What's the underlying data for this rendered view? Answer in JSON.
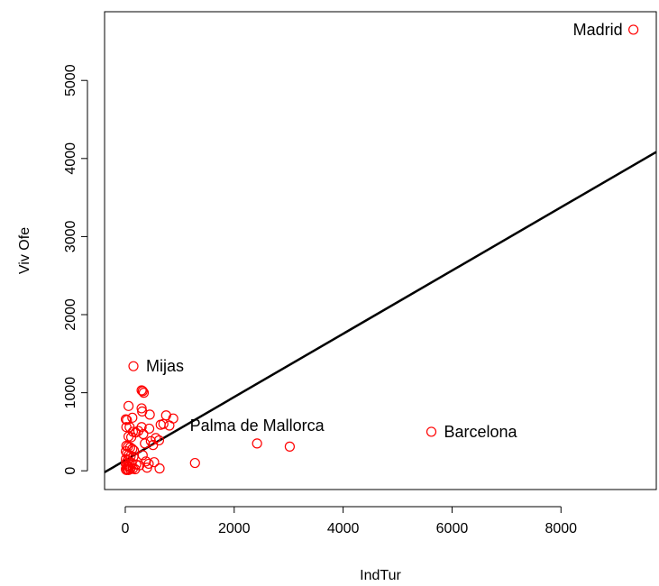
{
  "chart_data": {
    "type": "scatter",
    "title": "",
    "xlabel": "IndTur",
    "ylabel": "Viv Ofe",
    "xlim": [
      -380,
      9750
    ],
    "ylim": [
      -240,
      5880
    ],
    "x_ticks": [
      0,
      2000,
      4000,
      6000,
      8000
    ],
    "x_tick_labels": [
      "0",
      "2000",
      "4000",
      "6000",
      "8000"
    ],
    "y_ticks": [
      0,
      1000,
      2000,
      3000,
      4000,
      5000
    ],
    "y_tick_labels": [
      "0",
      "1000",
      "2000",
      "3000",
      "4000",
      "5000"
    ],
    "grid": false,
    "legend": "none",
    "point_color": "#ff0000",
    "line_color": "#000000",
    "regression_line": {
      "intercept": 135,
      "slope": 0.405
    },
    "points": [
      {
        "x": 9330,
        "y": 5650,
        "label": "Madrid"
      },
      {
        "x": 5620,
        "y": 500,
        "label": "Barcelona"
      },
      {
        "x": 3020,
        "y": 310
      },
      {
        "x": 2420,
        "y": 350,
        "label": "Palma de Mallorca"
      },
      {
        "x": 150,
        "y": 1340,
        "label": "Mijas"
      },
      {
        "x": 1280,
        "y": 100
      },
      {
        "x": 300,
        "y": 1030
      },
      {
        "x": 320,
        "y": 1020
      },
      {
        "x": 340,
        "y": 1000
      },
      {
        "x": 60,
        "y": 830
      },
      {
        "x": 300,
        "y": 800
      },
      {
        "x": 310,
        "y": 760
      },
      {
        "x": 450,
        "y": 720
      },
      {
        "x": 750,
        "y": 710
      },
      {
        "x": 880,
        "y": 670
      },
      {
        "x": 10,
        "y": 660
      },
      {
        "x": 30,
        "y": 650
      },
      {
        "x": 130,
        "y": 680
      },
      {
        "x": 650,
        "y": 590
      },
      {
        "x": 700,
        "y": 600
      },
      {
        "x": 810,
        "y": 580
      },
      {
        "x": 20,
        "y": 560
      },
      {
        "x": 80,
        "y": 560
      },
      {
        "x": 300,
        "y": 560
      },
      {
        "x": 440,
        "y": 540
      },
      {
        "x": 140,
        "y": 500
      },
      {
        "x": 190,
        "y": 490
      },
      {
        "x": 240,
        "y": 510
      },
      {
        "x": 330,
        "y": 470
      },
      {
        "x": 60,
        "y": 440
      },
      {
        "x": 110,
        "y": 430
      },
      {
        "x": 560,
        "y": 420
      },
      {
        "x": 470,
        "y": 380
      },
      {
        "x": 620,
        "y": 390
      },
      {
        "x": 360,
        "y": 350
      },
      {
        "x": 510,
        "y": 330
      },
      {
        "x": 20,
        "y": 320
      },
      {
        "x": 50,
        "y": 310
      },
      {
        "x": 90,
        "y": 300
      },
      {
        "x": 130,
        "y": 280
      },
      {
        "x": 160,
        "y": 260
      },
      {
        "x": 10,
        "y": 250
      },
      {
        "x": 30,
        "y": 220
      },
      {
        "x": 60,
        "y": 200
      },
      {
        "x": 100,
        "y": 190
      },
      {
        "x": 150,
        "y": 180
      },
      {
        "x": 320,
        "y": 200
      },
      {
        "x": 380,
        "y": 120
      },
      {
        "x": 430,
        "y": 90
      },
      {
        "x": 530,
        "y": 110
      },
      {
        "x": 10,
        "y": 150
      },
      {
        "x": 40,
        "y": 130
      },
      {
        "x": 80,
        "y": 110
      },
      {
        "x": 120,
        "y": 100
      },
      {
        "x": 200,
        "y": 80
      },
      {
        "x": 260,
        "y": 70
      },
      {
        "x": 10,
        "y": 90
      },
      {
        "x": 30,
        "y": 70
      },
      {
        "x": 50,
        "y": 60
      },
      {
        "x": 70,
        "y": 50
      },
      {
        "x": 100,
        "y": 40
      },
      {
        "x": 140,
        "y": 30
      },
      {
        "x": 400,
        "y": 40
      },
      {
        "x": 630,
        "y": 30
      },
      {
        "x": 10,
        "y": 20
      },
      {
        "x": 20,
        "y": 10
      },
      {
        "x": 40,
        "y": 20
      },
      {
        "x": 60,
        "y": 10
      },
      {
        "x": 90,
        "y": 20
      },
      {
        "x": 180,
        "y": 20
      }
    ]
  }
}
